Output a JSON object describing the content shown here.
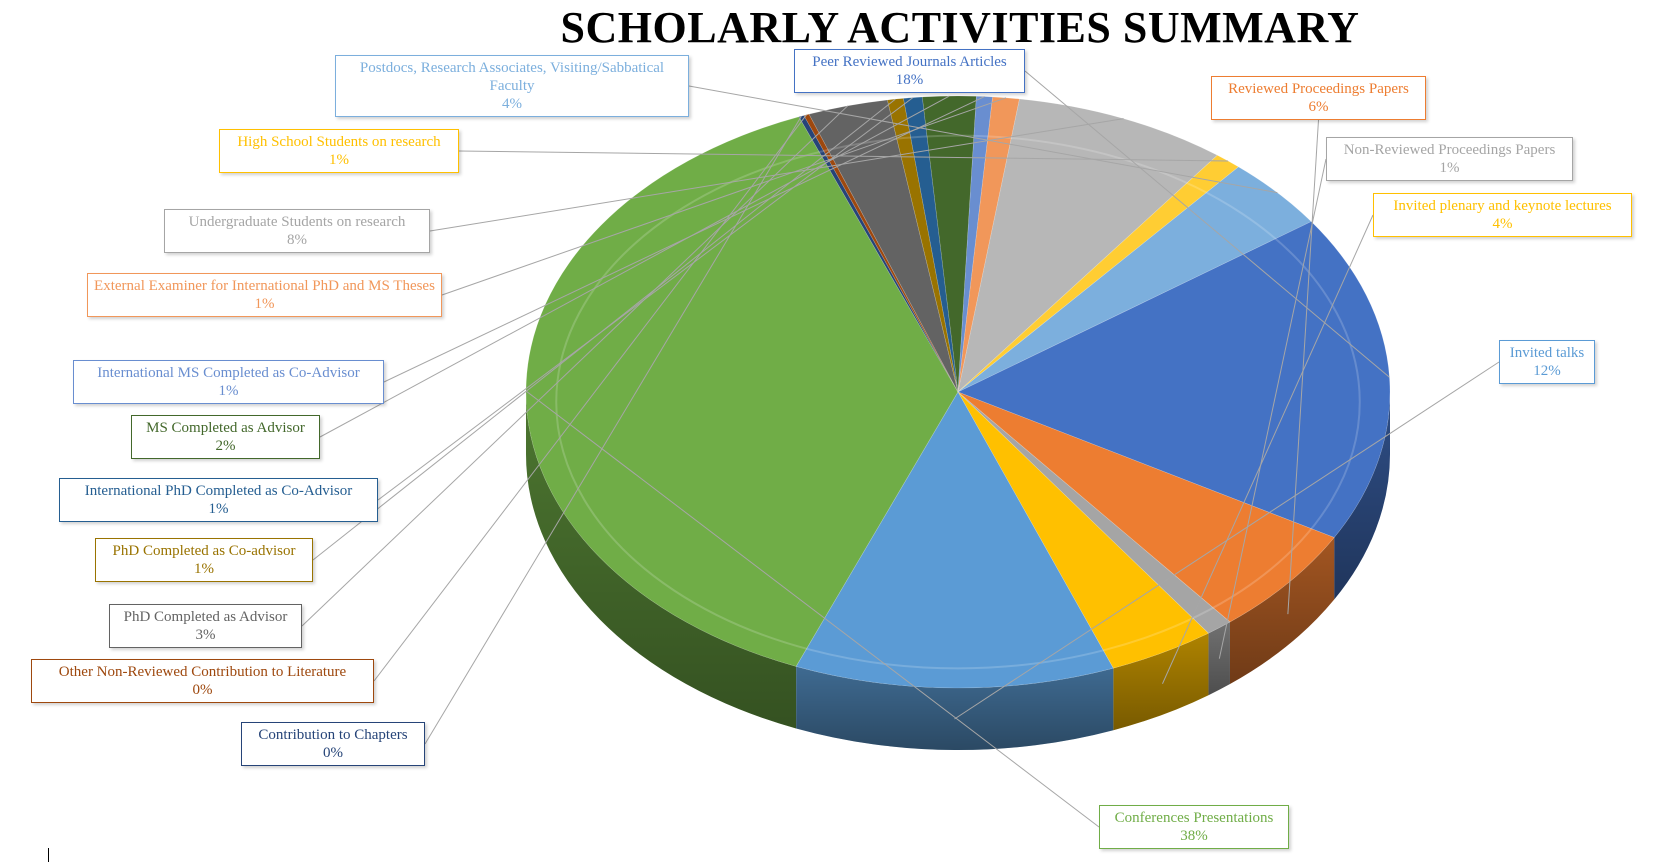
{
  "chart_data": {
    "type": "pie",
    "title": "SCHOLARLY ACTIVITIES SUMMARY",
    "slices": [
      {
        "label": "Conferences Presentations",
        "value": 38,
        "display": "38%",
        "color": "#70ad47",
        "text_color": "#70ad47"
      },
      {
        "label": "Contribution to Chapters",
        "value": 0.2,
        "display": "0%",
        "color": "#264478",
        "text_color": "#264478"
      },
      {
        "label": "Other Non-Reviewed Contribution to Literature",
        "value": 0.2,
        "display": "0%",
        "color": "#9e480e",
        "text_color": "#9e480e"
      },
      {
        "label": "PhD Completed as Advisor",
        "value": 3,
        "display": "3%",
        "color": "#636363",
        "text_color": "#636363"
      },
      {
        "label": "PhD Completed as Co-advisor",
        "value": 0.6,
        "display": "1%",
        "color": "#997300",
        "text_color": "#997300"
      },
      {
        "label": "International PhD Completed as Co-Advisor",
        "value": 0.7,
        "display": "1%",
        "color": "#255e91",
        "text_color": "#255e91"
      },
      {
        "label": "MS Completed as Advisor",
        "value": 2,
        "display": "2%",
        "color": "#43682b",
        "text_color": "#43682b"
      },
      {
        "label": "International MS Completed as Co-Advisor",
        "value": 0.6,
        "display": "1%",
        "color": "#698ed0",
        "text_color": "#698ed0"
      },
      {
        "label": "External Examiner for International PhD and MS Theses",
        "value": 1,
        "display": "1%",
        "color": "#f1975a",
        "text_color": "#f1975a"
      },
      {
        "label": "Undergraduate Students on research",
        "value": 8,
        "display": "8%",
        "color": "#b7b7b7",
        "text_color": "#a5a5a5"
      },
      {
        "label": "High School Students on research",
        "value": 1,
        "display": "1%",
        "color": "#ffcd33",
        "text_color": "#ffc000"
      },
      {
        "label": "Postdocs, Research Associates, Visiting/Sabbatical Faculty",
        "value": 4,
        "display": "4%",
        "color": "#7cafdd",
        "text_color": "#7cafdd"
      },
      {
        "label": "Peer Reviewed Journals Articles",
        "value": 18,
        "display": "18%",
        "color": "#4472c4",
        "text_color": "#4472c4"
      },
      {
        "label": "Reviewed Proceedings Papers",
        "value": 6,
        "display": "6%",
        "color": "#ed7d31",
        "text_color": "#ed7d31"
      },
      {
        "label": "Non-Reviewed Proceedings Papers",
        "value": 1,
        "display": "1%",
        "color": "#a5a5a5",
        "text_color": "#a5a5a5"
      },
      {
        "label": "Invited plenary and keynote lectures",
        "value": 4,
        "display": "4%",
        "color": "#ffc000",
        "text_color": "#ffc000"
      },
      {
        "label": "Invited talks",
        "value": 12,
        "display": "12%",
        "color": "#5b9bd5",
        "text_color": "#5b9bd5"
      }
    ]
  }
}
